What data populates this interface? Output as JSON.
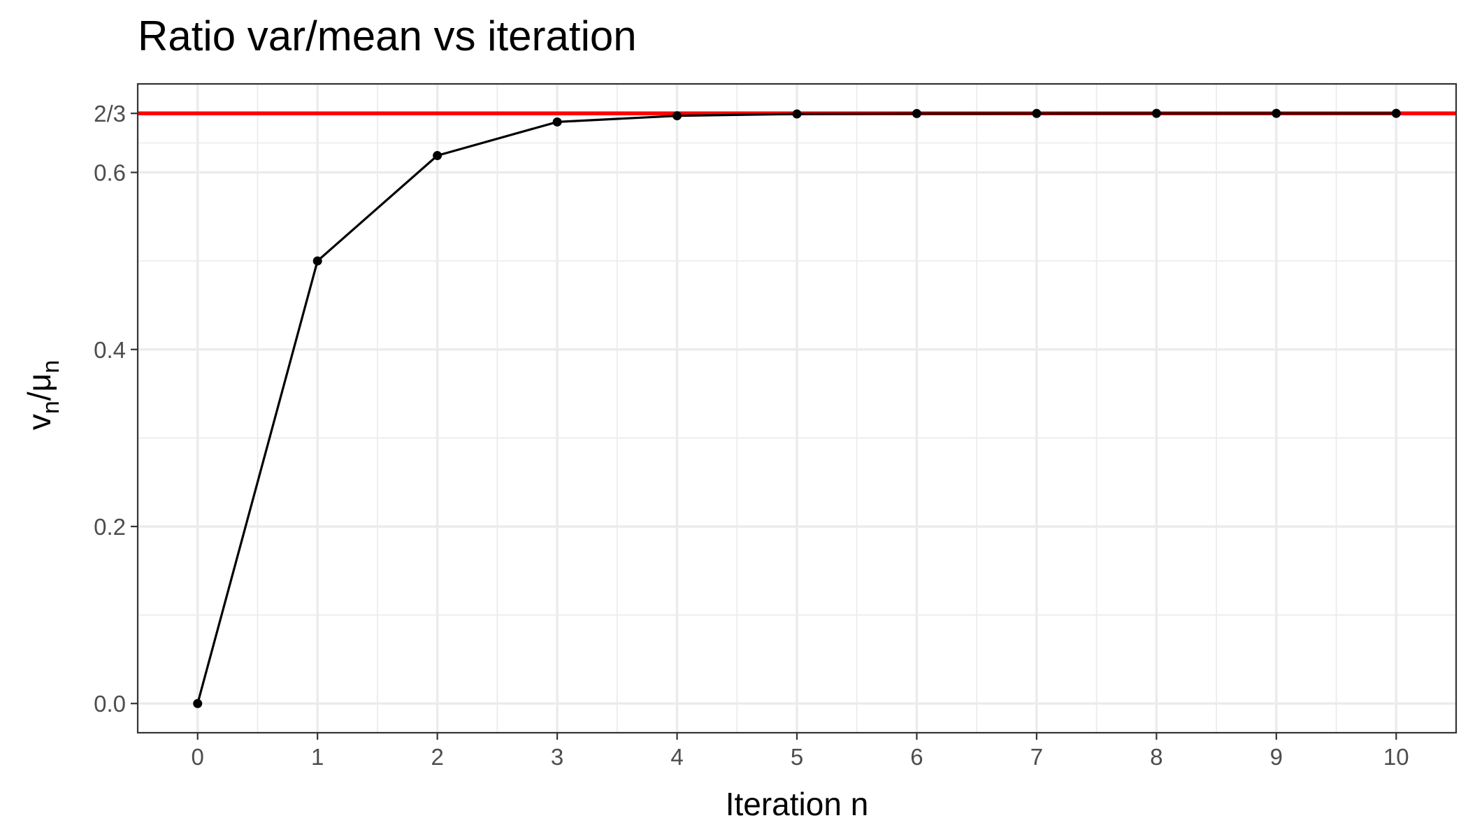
{
  "chart_data": {
    "type": "line",
    "title": "Ratio var/mean vs iteration",
    "xlabel": "Iteration n",
    "ylabel": {
      "base1": "v",
      "sub1": "n",
      "sep": "/",
      "base2": "μ",
      "sub2": "n"
    },
    "x": [
      0,
      1,
      2,
      3,
      4,
      5,
      6,
      7,
      8,
      9,
      10
    ],
    "series": [
      {
        "values": [
          0.0,
          0.5,
          0.619,
          0.657,
          0.664,
          0.666,
          0.6665,
          0.6666,
          0.6667,
          0.6667,
          0.6667
        ],
        "color": "#000000"
      }
    ],
    "reference_line": {
      "y": 0.6667,
      "color": "#ff0000"
    },
    "xlim": [
      -0.5,
      10.5
    ],
    "ylim": [
      -0.033,
      0.7
    ],
    "x_ticks": [
      {
        "value": 0,
        "label": "0"
      },
      {
        "value": 1,
        "label": "1"
      },
      {
        "value": 2,
        "label": "2"
      },
      {
        "value": 3,
        "label": "3"
      },
      {
        "value": 4,
        "label": "4"
      },
      {
        "value": 5,
        "label": "5"
      },
      {
        "value": 6,
        "label": "6"
      },
      {
        "value": 7,
        "label": "7"
      },
      {
        "value": 8,
        "label": "8"
      },
      {
        "value": 9,
        "label": "9"
      },
      {
        "value": 10,
        "label": "10"
      }
    ],
    "y_ticks": [
      {
        "value": 0.0,
        "label": "0.0"
      },
      {
        "value": 0.2,
        "label": "0.2"
      },
      {
        "value": 0.4,
        "label": "0.4"
      },
      {
        "value": 0.6,
        "label": "0.6"
      },
      {
        "value": 0.6667,
        "label": "2/3"
      }
    ],
    "y_minor_grid": [
      0.1,
      0.3,
      0.5,
      0.6333
    ],
    "grid": true,
    "theme": "bw"
  }
}
